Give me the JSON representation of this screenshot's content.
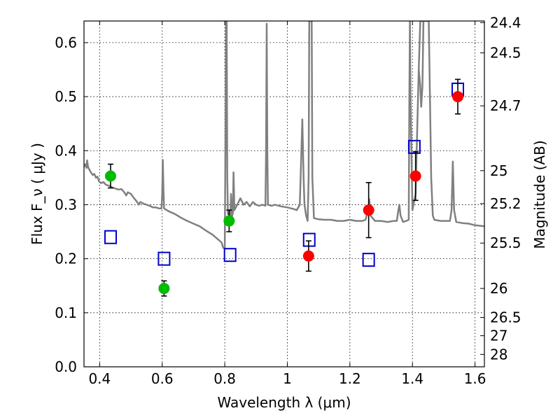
{
  "chart_data": {
    "type": "scatter",
    "xlabel": "Wavelength  λ (μm)",
    "ylabel": "Flux  F_ν  ( μJy )",
    "ylabel_right": "Magnitude (AB)",
    "xlim": [
      0.35,
      1.63
    ],
    "ylim": [
      0.0,
      0.64
    ],
    "grid": true,
    "x_ticks": [
      0.4,
      0.6,
      0.8,
      1.0,
      1.2,
      1.4,
      1.6
    ],
    "x_tick_labels": [
      "0.4",
      "0.6",
      "0.8",
      "1",
      "1.2",
      "1.4",
      "1.6"
    ],
    "y_ticks": [
      0.0,
      0.1,
      0.2,
      0.3,
      0.4,
      0.5,
      0.6
    ],
    "y_tick_labels": [
      "0.0",
      "0.1",
      "0.2",
      "0.3",
      "0.4",
      "0.5",
      "0.6"
    ],
    "mag_ticks": [
      {
        "label": "24.4",
        "flux": 0.637
      },
      {
        "label": "24.5",
        "flux": 0.581
      },
      {
        "label": "24.7",
        "flux": 0.483
      },
      {
        "label": "25",
        "flux": 0.363
      },
      {
        "label": "25.2",
        "flux": 0.302
      },
      {
        "label": "25.5",
        "flux": 0.229
      },
      {
        "label": "26",
        "flux": 0.145
      },
      {
        "label": "26.5",
        "flux": 0.0912
      },
      {
        "label": "27",
        "flux": 0.0575
      },
      {
        "label": "28",
        "flux": 0.0229
      }
    ],
    "series": [
      {
        "color": "#00bb00",
        "marker": "circle",
        "points": [
          {
            "x": 0.435,
            "y": 0.353,
            "err": 0.022
          },
          {
            "x": 0.606,
            "y": 0.145,
            "err": 0.014
          },
          {
            "x": 0.814,
            "y": 0.27,
            "err": 0.02
          }
        ]
      },
      {
        "color": "#ff0000",
        "marker": "circle",
        "points": [
          {
            "x": 1.068,
            "y": 0.205,
            "err": 0.028
          },
          {
            "x": 1.26,
            "y": 0.29,
            "err": 0.051
          },
          {
            "x": 1.41,
            "y": 0.353,
            "err": 0.045
          },
          {
            "x": 1.545,
            "y": 0.5,
            "err": 0.032
          }
        ]
      },
      {
        "color": "#0000cc",
        "marker": "open-square",
        "points": [
          {
            "x": 0.435,
            "y": 0.24
          },
          {
            "x": 0.606,
            "y": 0.2
          },
          {
            "x": 0.817,
            "y": 0.207
          },
          {
            "x": 1.07,
            "y": 0.235
          },
          {
            "x": 1.26,
            "y": 0.198
          },
          {
            "x": 1.406,
            "y": 0.407
          },
          {
            "x": 1.545,
            "y": 0.513
          }
        ]
      }
    ],
    "model_spectrum": {
      "color": "#808080",
      "points": [
        [
          0.35,
          0.37
        ],
        [
          0.355,
          0.375
        ],
        [
          0.358,
          0.368
        ],
        [
          0.36,
          0.382
        ],
        [
          0.363,
          0.37
        ],
        [
          0.367,
          0.365
        ],
        [
          0.372,
          0.36
        ],
        [
          0.378,
          0.355
        ],
        [
          0.383,
          0.357
        ],
        [
          0.388,
          0.35
        ],
        [
          0.393,
          0.352
        ],
        [
          0.398,
          0.343
        ],
        [
          0.405,
          0.34
        ],
        [
          0.412,
          0.342
        ],
        [
          0.42,
          0.337
        ],
        [
          0.43,
          0.335
        ],
        [
          0.44,
          0.332
        ],
        [
          0.45,
          0.33
        ],
        [
          0.46,
          0.328
        ],
        [
          0.47,
          0.329
        ],
        [
          0.48,
          0.322
        ],
        [
          0.485,
          0.317
        ],
        [
          0.49,
          0.323
        ],
        [
          0.5,
          0.32
        ],
        [
          0.51,
          0.312
        ],
        [
          0.52,
          0.305
        ],
        [
          0.525,
          0.3
        ],
        [
          0.53,
          0.305
        ],
        [
          0.54,
          0.302
        ],
        [
          0.55,
          0.3
        ],
        [
          0.56,
          0.298
        ],
        [
          0.57,
          0.295
        ],
        [
          0.58,
          0.295
        ],
        [
          0.59,
          0.293
        ],
        [
          0.598,
          0.293
        ],
        [
          0.6,
          0.32
        ],
        [
          0.602,
          0.383
        ],
        [
          0.604,
          0.33
        ],
        [
          0.606,
          0.293
        ],
        [
          0.62,
          0.288
        ],
        [
          0.64,
          0.283
        ],
        [
          0.66,
          0.276
        ],
        [
          0.68,
          0.27
        ],
        [
          0.7,
          0.265
        ],
        [
          0.72,
          0.26
        ],
        [
          0.74,
          0.252
        ],
        [
          0.76,
          0.245
        ],
        [
          0.78,
          0.235
        ],
        [
          0.79,
          0.23
        ],
        [
          0.795,
          0.22
        ],
        [
          0.8,
          0.22
        ],
        [
          0.802,
          0.4
        ],
        [
          0.804,
          0.64
        ],
        [
          0.806,
          0.64
        ],
        [
          0.808,
          0.35
        ],
        [
          0.81,
          0.283
        ],
        [
          0.818,
          0.278
        ],
        [
          0.82,
          0.32
        ],
        [
          0.823,
          0.278
        ],
        [
          0.826,
          0.285
        ],
        [
          0.828,
          0.36
        ],
        [
          0.831,
          0.29
        ],
        [
          0.84,
          0.3
        ],
        [
          0.85,
          0.312
        ],
        [
          0.86,
          0.3
        ],
        [
          0.87,
          0.305
        ],
        [
          0.88,
          0.297
        ],
        [
          0.89,
          0.305
        ],
        [
          0.9,
          0.3
        ],
        [
          0.91,
          0.298
        ],
        [
          0.92,
          0.3
        ],
        [
          0.93,
          0.298
        ],
        [
          0.932,
          0.4
        ],
        [
          0.934,
          0.635
        ],
        [
          0.936,
          0.4
        ],
        [
          0.938,
          0.3
        ],
        [
          0.95,
          0.298
        ],
        [
          0.96,
          0.3
        ],
        [
          0.98,
          0.297
        ],
        [
          1.0,
          0.295
        ],
        [
          1.02,
          0.292
        ],
        [
          1.03,
          0.29
        ],
        [
          1.04,
          0.3
        ],
        [
          1.045,
          0.4
        ],
        [
          1.048,
          0.458
        ],
        [
          1.052,
          0.35
        ],
        [
          1.055,
          0.3
        ],
        [
          1.06,
          0.28
        ],
        [
          1.065,
          0.27
        ],
        [
          1.068,
          0.35
        ],
        [
          1.07,
          0.64
        ],
        [
          1.078,
          0.64
        ],
        [
          1.08,
          0.35
        ],
        [
          1.085,
          0.275
        ],
        [
          1.1,
          0.273
        ],
        [
          1.12,
          0.272
        ],
        [
          1.14,
          0.272
        ],
        [
          1.16,
          0.27
        ],
        [
          1.18,
          0.27
        ],
        [
          1.2,
          0.272
        ],
        [
          1.22,
          0.27
        ],
        [
          1.24,
          0.27
        ],
        [
          1.25,
          0.272
        ],
        [
          1.258,
          0.29
        ],
        [
          1.262,
          0.31
        ],
        [
          1.266,
          0.28
        ],
        [
          1.28,
          0.27
        ],
        [
          1.3,
          0.27
        ],
        [
          1.32,
          0.268
        ],
        [
          1.34,
          0.27
        ],
        [
          1.35,
          0.27
        ],
        [
          1.355,
          0.29
        ],
        [
          1.358,
          0.3
        ],
        [
          1.362,
          0.28
        ],
        [
          1.37,
          0.268
        ],
        [
          1.38,
          0.27
        ],
        [
          1.388,
          0.272
        ],
        [
          1.39,
          0.5
        ],
        [
          1.392,
          0.64
        ],
        [
          1.394,
          0.5
        ],
        [
          1.4,
          0.29
        ],
        [
          1.41,
          0.32
        ],
        [
          1.42,
          0.55
        ],
        [
          1.425,
          0.64
        ],
        [
          1.435,
          0.64
        ],
        [
          1.445,
          0.64
        ],
        [
          1.452,
          0.64
        ],
        [
          1.456,
          0.5
        ],
        [
          1.46,
          0.35
        ],
        [
          1.465,
          0.28
        ],
        [
          1.47,
          0.272
        ],
        [
          1.49,
          0.27
        ],
        [
          1.51,
          0.27
        ],
        [
          1.52,
          0.27
        ],
        [
          1.525,
          0.29
        ],
        [
          1.529,
          0.38
        ],
        [
          1.533,
          0.29
        ],
        [
          1.54,
          0.268
        ],
        [
          1.56,
          0.266
        ],
        [
          1.58,
          0.265
        ],
        [
          1.6,
          0.262
        ],
        [
          1.63,
          0.26
        ]
      ],
      "extra_segments": [
        [
          [
            1.42,
            0.55
          ],
          [
            1.425,
            0.52
          ],
          [
            1.428,
            0.48
          ],
          [
            1.432,
            0.52
          ],
          [
            1.435,
            0.64
          ]
        ]
      ]
    }
  }
}
